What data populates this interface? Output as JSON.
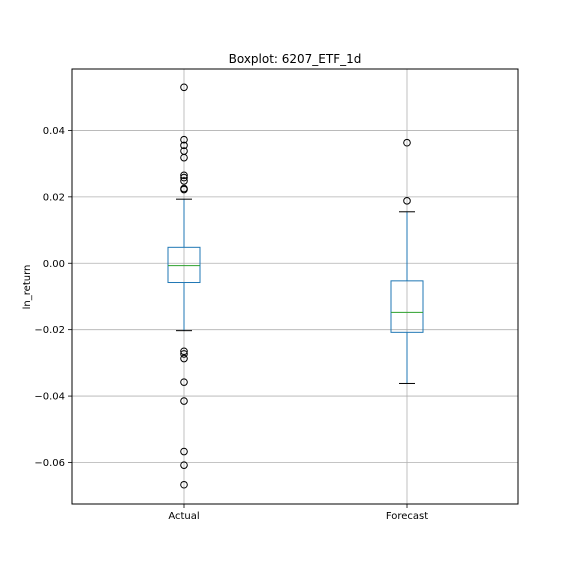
{
  "chart_data": {
    "type": "boxplot",
    "title": "Boxplot: 6207_ETF_1d",
    "xlabel": "",
    "ylabel": "ln_return",
    "categories": [
      "Actual",
      "Forecast"
    ],
    "ylim": [
      -0.0725,
      0.0585
    ],
    "yticks": [
      -0.06,
      -0.04,
      -0.02,
      0.0,
      0.02,
      0.04
    ],
    "ytick_labels": [
      "−0.06",
      "−0.04",
      "−0.02",
      "0.00",
      "0.02",
      "0.04"
    ],
    "grid": true,
    "colors": {
      "box": "#1f77b4",
      "median": "#2ca02c",
      "whisker": "#000000",
      "grid": "#b0b0b0"
    },
    "boxes": [
      {
        "name": "Actual",
        "whisker_low": -0.0203,
        "q1": -0.0058,
        "median": -0.0007,
        "q3": 0.0048,
        "whisker_high": 0.0193,
        "fliers": [
          0.053,
          0.0372,
          0.0355,
          0.0338,
          0.0318,
          0.0265,
          0.0258,
          0.0248,
          0.0225,
          0.0222,
          -0.0265,
          -0.0273,
          -0.0287,
          -0.0358,
          -0.0415,
          -0.0567,
          -0.0608,
          -0.0667
        ]
      },
      {
        "name": "Forecast",
        "whisker_low": -0.0362,
        "q1": -0.0208,
        "median": -0.0148,
        "q3": -0.0053,
        "whisker_high": 0.0155,
        "fliers": [
          0.0363,
          0.0188
        ]
      }
    ]
  }
}
